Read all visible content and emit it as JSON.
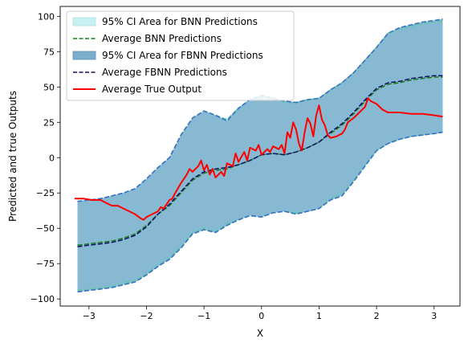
{
  "chart_data": {
    "type": "line",
    "xlabel": "X",
    "ylabel": "Predicted and true Outputs",
    "xlim": [
      -3.5,
      3.45
    ],
    "ylim": [
      -105,
      107
    ],
    "xticks": [
      -3,
      -2,
      -1,
      0,
      1,
      2,
      3
    ],
    "yticks": [
      -100,
      -75,
      -50,
      -25,
      0,
      25,
      50,
      75,
      100
    ],
    "grid": false,
    "legend_position": "top-left",
    "colors": {
      "bnn_ci_fill": "#c8f0f0",
      "bnn_ci_edge": "#5cc8a8",
      "bnn_mean": "#1a7a1a",
      "fbnn_ci_fill": "#7aaecb",
      "fbnn_ci_edge": "#3a6fc8",
      "fbnn_mean": "#10106a",
      "true_output": "#ff0000"
    },
    "legend": [
      {
        "label": "95% CI Area for BNN Predictions",
        "kind": "patch",
        "color_key": "bnn_ci_fill"
      },
      {
        "label": "Average BNN Predictions",
        "kind": "dashed",
        "color_key": "bnn_mean"
      },
      {
        "label": "95% CI Area for FBNN Predictions",
        "kind": "patch",
        "color_key": "fbnn_ci_fill"
      },
      {
        "label": "Average FBNN Predictions",
        "kind": "dashed",
        "color_key": "fbnn_mean"
      },
      {
        "label": "Average True Output",
        "kind": "solid",
        "color_key": "true_output"
      }
    ],
    "series": [
      {
        "role": "bnn_upper",
        "x": [
          -3.2,
          -3.0,
          -2.8,
          -2.6,
          -2.4,
          -2.2,
          -2.0,
          -1.8,
          -1.6,
          -1.4,
          -1.2,
          -1.0,
          -0.8,
          -0.6,
          -0.4,
          -0.2,
          0.0,
          0.2,
          0.4,
          0.6,
          0.8,
          1.0,
          1.2,
          1.4,
          1.6,
          1.8,
          2.0,
          2.2,
          2.4,
          2.6,
          2.8,
          3.0,
          3.15
        ],
        "y": [
          -31,
          -30,
          -29,
          -27,
          -25,
          -22,
          -15,
          -7,
          0,
          16,
          28,
          33,
          30,
          27,
          35,
          41,
          43,
          42,
          39,
          39,
          41,
          42,
          48,
          53,
          60,
          69,
          78,
          88,
          91,
          93,
          95,
          96,
          97
        ]
      },
      {
        "role": "bnn_lower",
        "x": [
          -3.2,
          -3.0,
          -2.8,
          -2.6,
          -2.4,
          -2.2,
          -2.0,
          -1.8,
          -1.6,
          -1.4,
          -1.2,
          -1.0,
          -0.8,
          -0.6,
          -0.4,
          -0.2,
          0.0,
          0.2,
          0.4,
          0.6,
          0.8,
          1.0,
          1.2,
          1.4,
          1.6,
          1.8,
          2.0,
          2.2,
          2.4,
          2.6,
          2.8,
          3.0,
          3.15
        ],
        "y": [
          -94,
          -93,
          -92,
          -91,
          -89,
          -87,
          -82,
          -76,
          -71,
          -63,
          -53,
          -50,
          -52,
          -47,
          -44,
          -41,
          -42,
          -39,
          -38,
          -39,
          -38,
          -36,
          -29,
          -26,
          -16,
          -5,
          5,
          10,
          13,
          15,
          16,
          17,
          18
        ]
      },
      {
        "role": "fbnn_upper",
        "x": [
          -3.2,
          -3.0,
          -2.8,
          -2.6,
          -2.4,
          -2.2,
          -2.0,
          -1.8,
          -1.6,
          -1.4,
          -1.2,
          -1.0,
          -0.8,
          -0.6,
          -0.4,
          -0.2,
          0.0,
          0.2,
          0.4,
          0.6,
          0.8,
          1.0,
          1.2,
          1.4,
          1.6,
          1.8,
          2.0,
          2.2,
          2.4,
          2.6,
          2.8,
          3.0,
          3.15
        ],
        "y": [
          -31,
          -30,
          -29,
          -27,
          -25,
          -22,
          -15,
          -7,
          0,
          16,
          28,
          33,
          30,
          26,
          35,
          41,
          44,
          42,
          40,
          39,
          41,
          42,
          48,
          53,
          60,
          69,
          78,
          88,
          92,
          94,
          96,
          97,
          98
        ]
      },
      {
        "role": "fbnn_lower",
        "x": [
          -3.2,
          -3.0,
          -2.8,
          -2.6,
          -2.4,
          -2.2,
          -2.0,
          -1.8,
          -1.6,
          -1.4,
          -1.2,
          -1.0,
          -0.8,
          -0.6,
          -0.4,
          -0.2,
          0.0,
          0.2,
          0.4,
          0.6,
          0.8,
          1.0,
          1.2,
          1.4,
          1.6,
          1.8,
          2.0,
          2.2,
          2.4,
          2.6,
          2.8,
          3.0,
          3.15
        ],
        "y": [
          -95,
          -94,
          -93,
          -92,
          -90,
          -88,
          -83,
          -77,
          -72,
          -64,
          -54,
          -51,
          -53,
          -48,
          -44,
          -41,
          -42,
          -39,
          -38,
          -40,
          -38,
          -36,
          -30,
          -27,
          -17,
          -6,
          5,
          10,
          13,
          15,
          16,
          17,
          18
        ]
      },
      {
        "role": "bnn_mean",
        "x": [
          -3.2,
          -3.0,
          -2.8,
          -2.6,
          -2.4,
          -2.2,
          -2.0,
          -1.8,
          -1.6,
          -1.4,
          -1.2,
          -1.0,
          -0.8,
          -0.6,
          -0.4,
          -0.2,
          0.0,
          0.2,
          0.4,
          0.6,
          0.8,
          1.0,
          1.2,
          1.4,
          1.6,
          1.8,
          2.0,
          2.2,
          2.4,
          2.6,
          2.8,
          3.0,
          3.15
        ],
        "y": [
          -62,
          -61,
          -60,
          -59,
          -57,
          -54,
          -48,
          -40,
          -34,
          -25,
          -16,
          -11,
          -9,
          -8,
          -5,
          -2,
          2,
          3,
          2,
          4,
          7,
          11,
          17,
          23,
          31,
          40,
          48,
          52,
          53,
          55,
          56,
          57,
          57
        ]
      },
      {
        "role": "fbnn_mean",
        "x": [
          -3.2,
          -3.0,
          -2.8,
          -2.6,
          -2.4,
          -2.2,
          -2.0,
          -1.8,
          -1.6,
          -1.4,
          -1.2,
          -1.0,
          -0.8,
          -0.6,
          -0.4,
          -0.2,
          0.0,
          0.2,
          0.4,
          0.6,
          0.8,
          1.0,
          1.2,
          1.4,
          1.6,
          1.8,
          2.0,
          2.2,
          2.4,
          2.6,
          2.8,
          3.0,
          3.15
        ],
        "y": [
          -63,
          -62,
          -61,
          -60,
          -58,
          -55,
          -49,
          -40,
          -33,
          -24,
          -15,
          -10,
          -8,
          -7,
          -5,
          -2,
          2,
          3,
          2,
          4,
          7,
          11,
          18,
          24,
          32,
          41,
          49,
          53,
          54,
          56,
          57,
          58,
          58
        ]
      },
      {
        "role": "true_output",
        "x": [
          -3.25,
          -3.1,
          -2.95,
          -2.8,
          -2.7,
          -2.6,
          -2.5,
          -2.4,
          -2.3,
          -2.2,
          -2.1,
          -2.05,
          -2.0,
          -1.9,
          -1.8,
          -1.75,
          -1.7,
          -1.6,
          -1.55,
          -1.5,
          -1.4,
          -1.3,
          -1.25,
          -1.2,
          -1.1,
          -1.05,
          -1.0,
          -0.95,
          -0.9,
          -0.85,
          -0.8,
          -0.7,
          -0.65,
          -0.6,
          -0.5,
          -0.45,
          -0.4,
          -0.3,
          -0.25,
          -0.2,
          -0.1,
          -0.05,
          0.0,
          0.1,
          0.15,
          0.2,
          0.3,
          0.35,
          0.4,
          0.45,
          0.5,
          0.55,
          0.6,
          0.65,
          0.7,
          0.75,
          0.8,
          0.85,
          0.9,
          0.95,
          1.0,
          1.05,
          1.1,
          1.15,
          1.2,
          1.3,
          1.4,
          1.45,
          1.5,
          1.6,
          1.7,
          1.8,
          1.85,
          1.9,
          2.0,
          2.1,
          2.2,
          2.4,
          2.6,
          2.8,
          3.0,
          3.15
        ],
        "y": [
          -29,
          -29,
          -30,
          -30,
          -32,
          -34,
          -34,
          -36,
          -38,
          -40,
          -43,
          -44,
          -42,
          -40,
          -38,
          -35,
          -36,
          -30,
          -29,
          -25,
          -18,
          -12,
          -8,
          -10,
          -6,
          -2,
          -9,
          -5,
          -12,
          -8,
          -14,
          -10,
          -13,
          -4,
          -6,
          3,
          -3,
          4,
          -2,
          7,
          5,
          9,
          2,
          6,
          4,
          8,
          6,
          9,
          3,
          18,
          14,
          25,
          20,
          10,
          5,
          18,
          28,
          24,
          15,
          30,
          37,
          27,
          23,
          16,
          14,
          15,
          17,
          20,
          25,
          28,
          32,
          36,
          42,
          40,
          38,
          34,
          32,
          32,
          31,
          31,
          30,
          29
        ]
      }
    ]
  }
}
